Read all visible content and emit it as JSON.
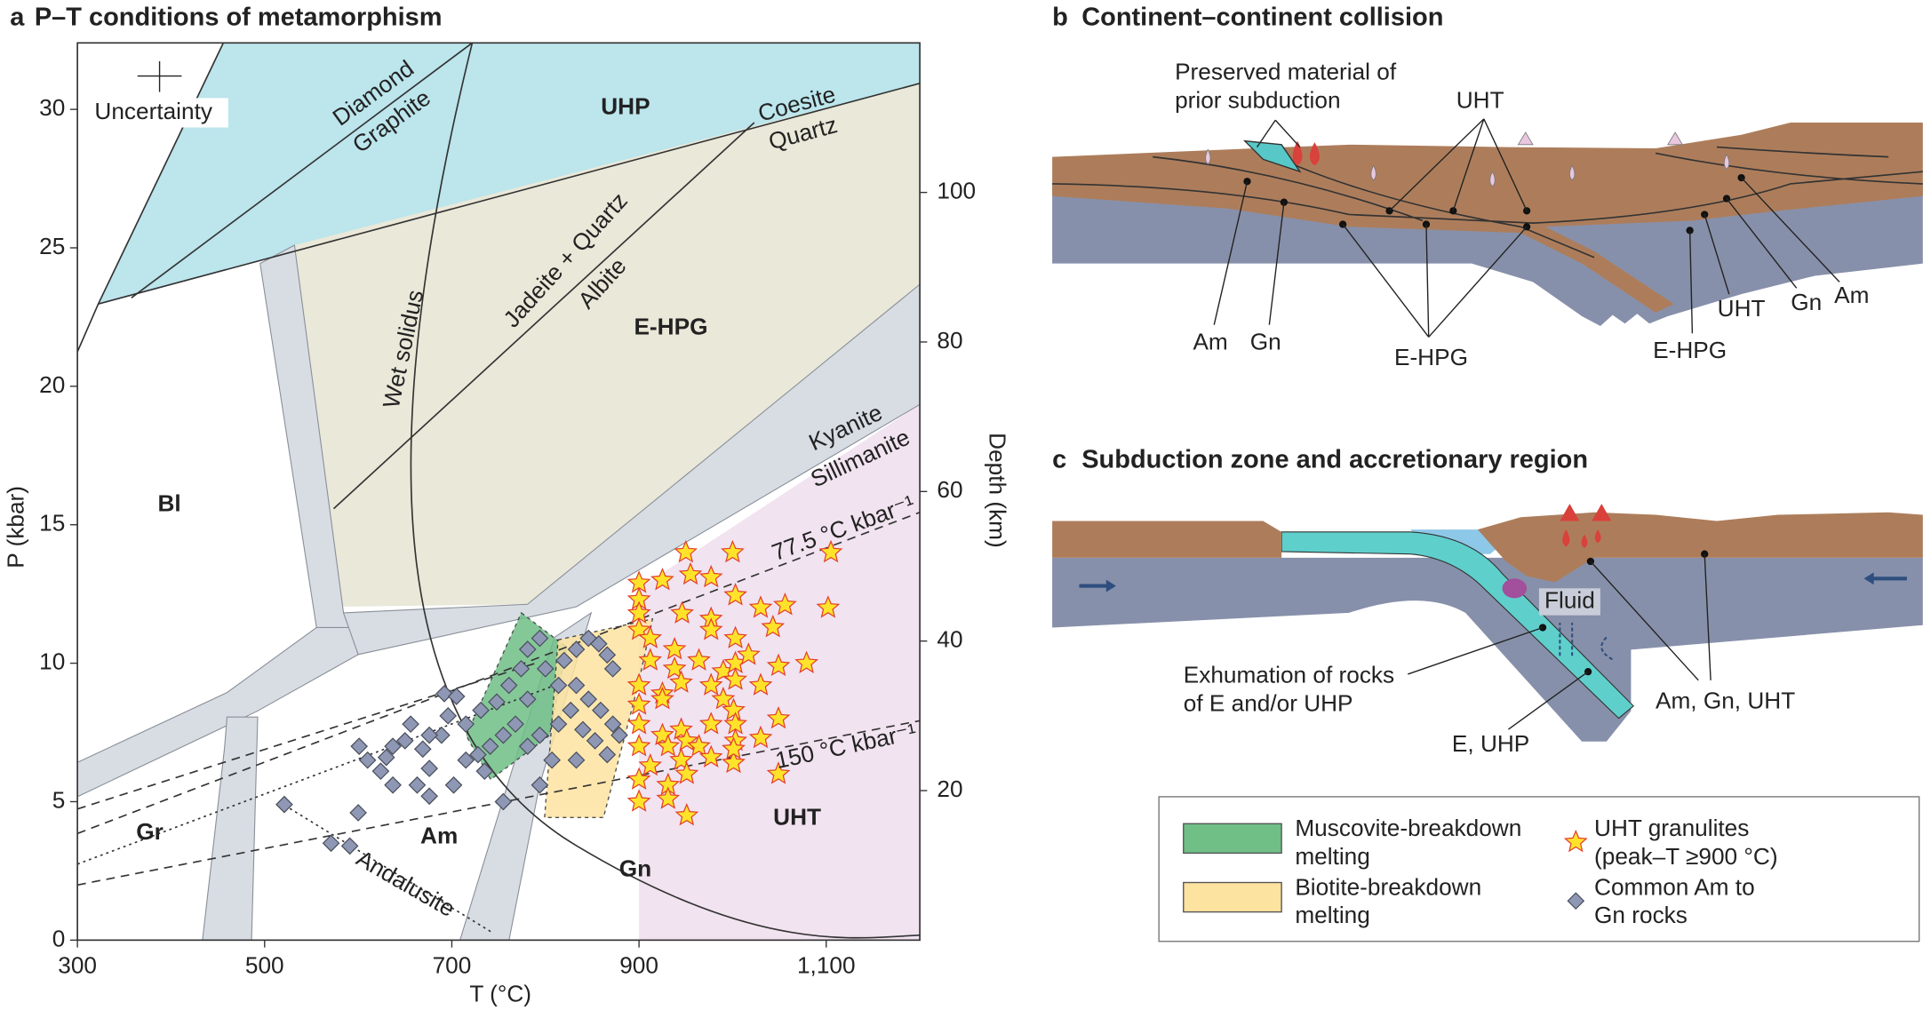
{
  "chart_data": {
    "type": "scatter",
    "panel_label": "a",
    "title": "P–T conditions of metamorphism",
    "xlabel": "T (°C)",
    "ylabel": "P (kbar)",
    "y2label": "Depth (km)",
    "xlim": [
      300,
      1200
    ],
    "ylim": [
      0,
      32.4
    ],
    "y2lim": [
      0,
      120
    ],
    "xticks": [
      300,
      500,
      700,
      900,
      {
        "value": 1100,
        "label": "1,100"
      }
    ],
    "yticks": [
      0,
      5,
      10,
      15,
      20,
      25,
      30
    ],
    "y2ticks": [
      20,
      40,
      60,
      80,
      100
    ],
    "annotations": [
      "Uncertainty",
      "Diamond",
      "Graphite",
      "UHP",
      "Coesite",
      "Quartz",
      "Jadeite + Quartz",
      "Albite",
      "E-HPG",
      "Wet solidus",
      "Bl",
      "Kyanite",
      "Sillimanite",
      "77.5 °C kbar⁻¹",
      "150 °C kbar⁻¹",
      "Gr",
      "Am",
      "Gn",
      "UHT",
      "Andalusite"
    ],
    "regions": [
      {
        "name": "Muscovite-breakdown melting",
        "color": "#6fbf87"
      },
      {
        "name": "Biotite-breakdown melting",
        "color": "#fde3a0"
      }
    ],
    "series": [
      {
        "name": "UHT granulites (peak–T ≥900 °C)",
        "marker": "star",
        "color": "#ffe32a",
        "edgecolor": "#e3402b",
        "x": [
          950,
          1000,
          1105,
          900,
          925,
          955,
          977,
          900,
          1003,
          900,
          946,
          977,
          1030,
          1056,
          1102,
          900,
          912,
          938,
          977,
          1003,
          1043,
          912,
          938,
          964,
          990,
          1003,
          1017,
          1049,
          1079,
          900,
          925,
          945,
          977,
          1003,
          1030,
          900,
          925,
          990,
          1001,
          900,
          925,
          945,
          977,
          1003,
          1049,
          900,
          931,
          951,
          964,
          1003,
          1030,
          912,
          945,
          977,
          1001,
          900,
          931,
          951,
          900,
          931,
          951,
          1049,
          1001
        ],
        "values": [
          14.0,
          14.0,
          14.0,
          12.9,
          13.0,
          13.2,
          13.1,
          12.3,
          12.45,
          11.8,
          11.8,
          11.6,
          12.0,
          12.1,
          12.0,
          11.2,
          10.9,
          10.5,
          11.2,
          10.9,
          11.3,
          10.1,
          9.8,
          10.1,
          9.7,
          10.0,
          10.3,
          9.9,
          10.0,
          9.2,
          8.9,
          9.3,
          9.2,
          9.4,
          9.2,
          8.5,
          8.7,
          8.7,
          8.3,
          7.8,
          7.4,
          7.6,
          7.8,
          7.8,
          8.0,
          7.0,
          7.0,
          7.2,
          7.0,
          7.2,
          7.3,
          6.3,
          6.5,
          6.6,
          6.4,
          5.8,
          5.6,
          6.0,
          5.0,
          5.1,
          4.5,
          6.0,
          6.9
        ]
      },
      {
        "name": "Common Am to Gn rocks",
        "marker": "diamond",
        "color": "#8e98b5",
        "edgecolor": "#4a4f5c",
        "x": [
          601,
          610,
          624,
          630,
          637,
          650,
          656,
          669,
          676,
          689,
          696,
          692,
          705,
          715,
          731,
          748,
          761,
          774,
          781,
          794,
          800,
          820,
          833,
          846,
          857,
          866,
          872,
          833,
          846,
          859,
          872,
          827,
          814,
          794,
          781,
          768,
          755,
          741,
          728,
          715,
          755,
          794,
          807,
          833,
          853,
          866,
          879,
          637,
          663,
          676,
          600,
          521,
          571,
          591,
          676,
          702,
          781,
          814,
          840,
          735
        ],
        "values": [
          7.0,
          6.5,
          6.1,
          6.6,
          7.0,
          7.2,
          7.8,
          6.9,
          6.2,
          7.4,
          8.1,
          8.9,
          8.8,
          7.8,
          8.3,
          8.6,
          9.2,
          9.8,
          10.5,
          10.9,
          9.8,
          10.1,
          10.5,
          10.9,
          10.7,
          10.3,
          9.8,
          9.2,
          8.7,
          8.3,
          7.8,
          8.3,
          7.8,
          7.4,
          7.0,
          7.8,
          7.4,
          7.0,
          6.7,
          6.5,
          5.0,
          5.6,
          6.5,
          6.5,
          7.2,
          6.7,
          7.4,
          5.6,
          5.6,
          5.2,
          4.6,
          4.9,
          3.5,
          3.4,
          7.4,
          5.6,
          8.7,
          9.2,
          7.6,
          6.1
        ]
      }
    ]
  },
  "panel_b": {
    "label": "b",
    "title": "Continent–continent collision",
    "preserved": [
      "Preserved material of",
      "prior subduction"
    ],
    "labels": [
      "UHT",
      "Am",
      "Gn",
      "E-HPG",
      "E-HPG",
      "UHT",
      "Gn",
      "Am"
    ]
  },
  "panel_c": {
    "label": "c",
    "title": "Subduction zone and accretionary region",
    "fluid": "Fluid",
    "exhumation": [
      "Exhumation of rocks",
      "of E and/or UHP"
    ],
    "e_uhp": "E, UHP",
    "am_gn_uht": "Am, Gn, UHT"
  }
}
